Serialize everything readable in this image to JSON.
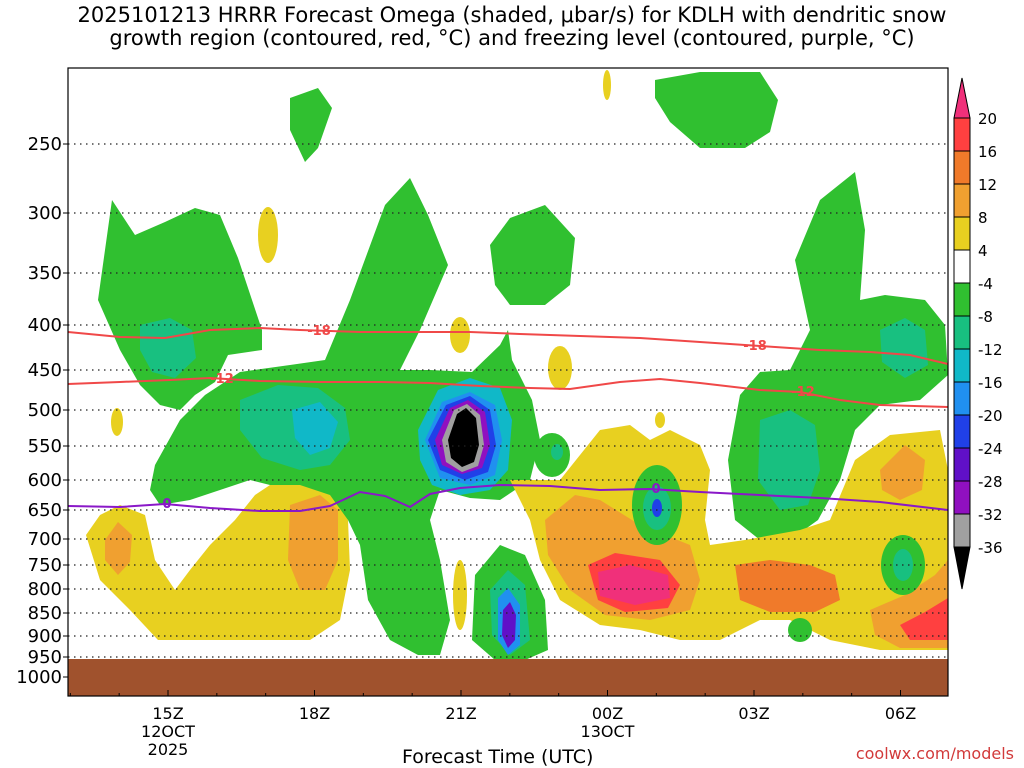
{
  "chart_data": {
    "type": "contour",
    "title_line1": "2025101213 HRRR Forecast Omega (shaded, μbar/s) for KDLH with dendritic snow",
    "title_line2": "growth region (contoured, red, °C) and freezing level (contoured, purple, °C)",
    "xlabel": "Forecast Time (UTC)",
    "credit": "coolwx.com/models",
    "y_ticks": [
      "250",
      "300",
      "350",
      "400",
      "450",
      "500",
      "550",
      "600",
      "650",
      "700",
      "750",
      "800",
      "850",
      "900",
      "950",
      "1000"
    ],
    "x_ticks": [
      {
        "label": "15Z",
        "sub1": "12OCT",
        "sub2": "2025"
      },
      {
        "label": "18Z",
        "sub1": "",
        "sub2": ""
      },
      {
        "label": "21Z",
        "sub1": "",
        "sub2": ""
      },
      {
        "label": "00Z",
        "sub1": "13OCT",
        "sub2": ""
      },
      {
        "label": "03Z",
        "sub1": "",
        "sub2": ""
      },
      {
        "label": "06Z",
        "sub1": "",
        "sub2": ""
      }
    ],
    "colorbar_labels": [
      "20",
      "16",
      "12",
      "8",
      "4",
      "-4",
      "-8",
      "-12",
      "-16",
      "-20",
      "-24",
      "-28",
      "-32",
      "-36"
    ],
    "colorbar_colors": [
      "#f0307a",
      "#ff4040",
      "#f07a2a",
      "#f0a030",
      "#e8d020",
      "#ffffff",
      "#30c030",
      "#18c080",
      "#10b8c8",
      "#2090f0",
      "#2040e8",
      "#6010c8",
      "#9010c0",
      "#a0a0a0",
      "#000000"
    ],
    "contour_labels": {
      "dgz_upper": "-18",
      "dgz_lower": "-12",
      "freezing": "0"
    },
    "line_colors": {
      "dgz": "#f04848",
      "freezing": "#8a18c8",
      "ground": "#a0522d"
    }
  }
}
